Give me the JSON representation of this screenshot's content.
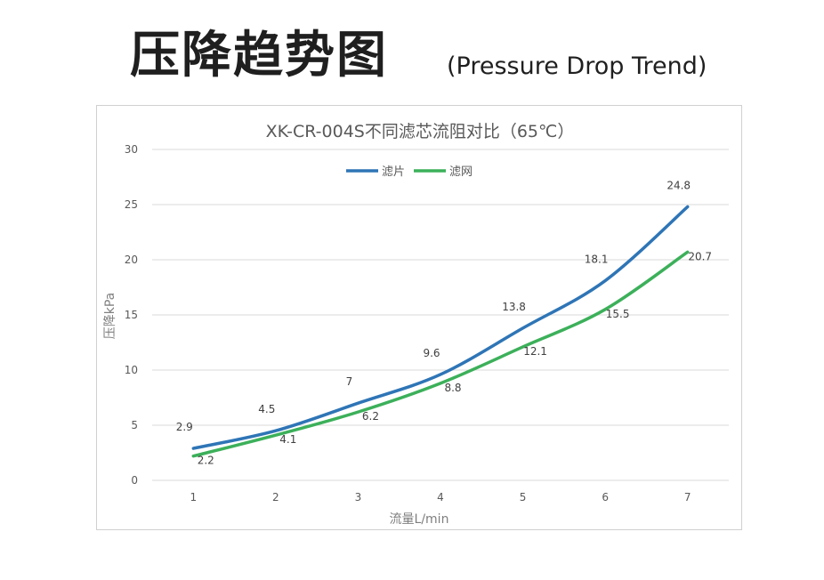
{
  "header": {
    "title": "压降趋势图",
    "subtitle": "(Pressure Drop Trend)"
  },
  "colors": {
    "series_1": "#2e75b6",
    "series_2": "#3cb05a"
  },
  "chart_data": {
    "type": "line",
    "title": "XK-CR-004S不同滤芯流阻对比（65℃）",
    "xlabel": "流量L/min",
    "ylabel": "压降kPa",
    "categories": [
      "1",
      "2",
      "3",
      "4",
      "5",
      "6",
      "7"
    ],
    "x": [
      1,
      2,
      3,
      4,
      5,
      6,
      7
    ],
    "ylim": [
      0,
      30
    ],
    "yticks": [
      "0",
      "5",
      "10",
      "15",
      "20",
      "25",
      "30"
    ],
    "ytick_values": [
      0,
      5,
      10,
      15,
      20,
      25,
      30
    ],
    "grid": true,
    "legend_position": "top-center",
    "series": [
      {
        "name": "滤片",
        "values": [
          2.9,
          4.5,
          7,
          9.6,
          13.8,
          18.1,
          24.8
        ],
        "labels": [
          "2.9",
          "4.5",
          "7",
          "9.6",
          "13.8",
          "18.1",
          "24.8"
        ]
      },
      {
        "name": "滤网",
        "values": [
          2.2,
          4.1,
          6.2,
          8.8,
          12.1,
          15.5,
          20.7
        ],
        "labels": [
          "2.2",
          "4.1",
          "6.2",
          "8.8",
          "12.1",
          "15.5",
          "20.7"
        ]
      }
    ]
  }
}
